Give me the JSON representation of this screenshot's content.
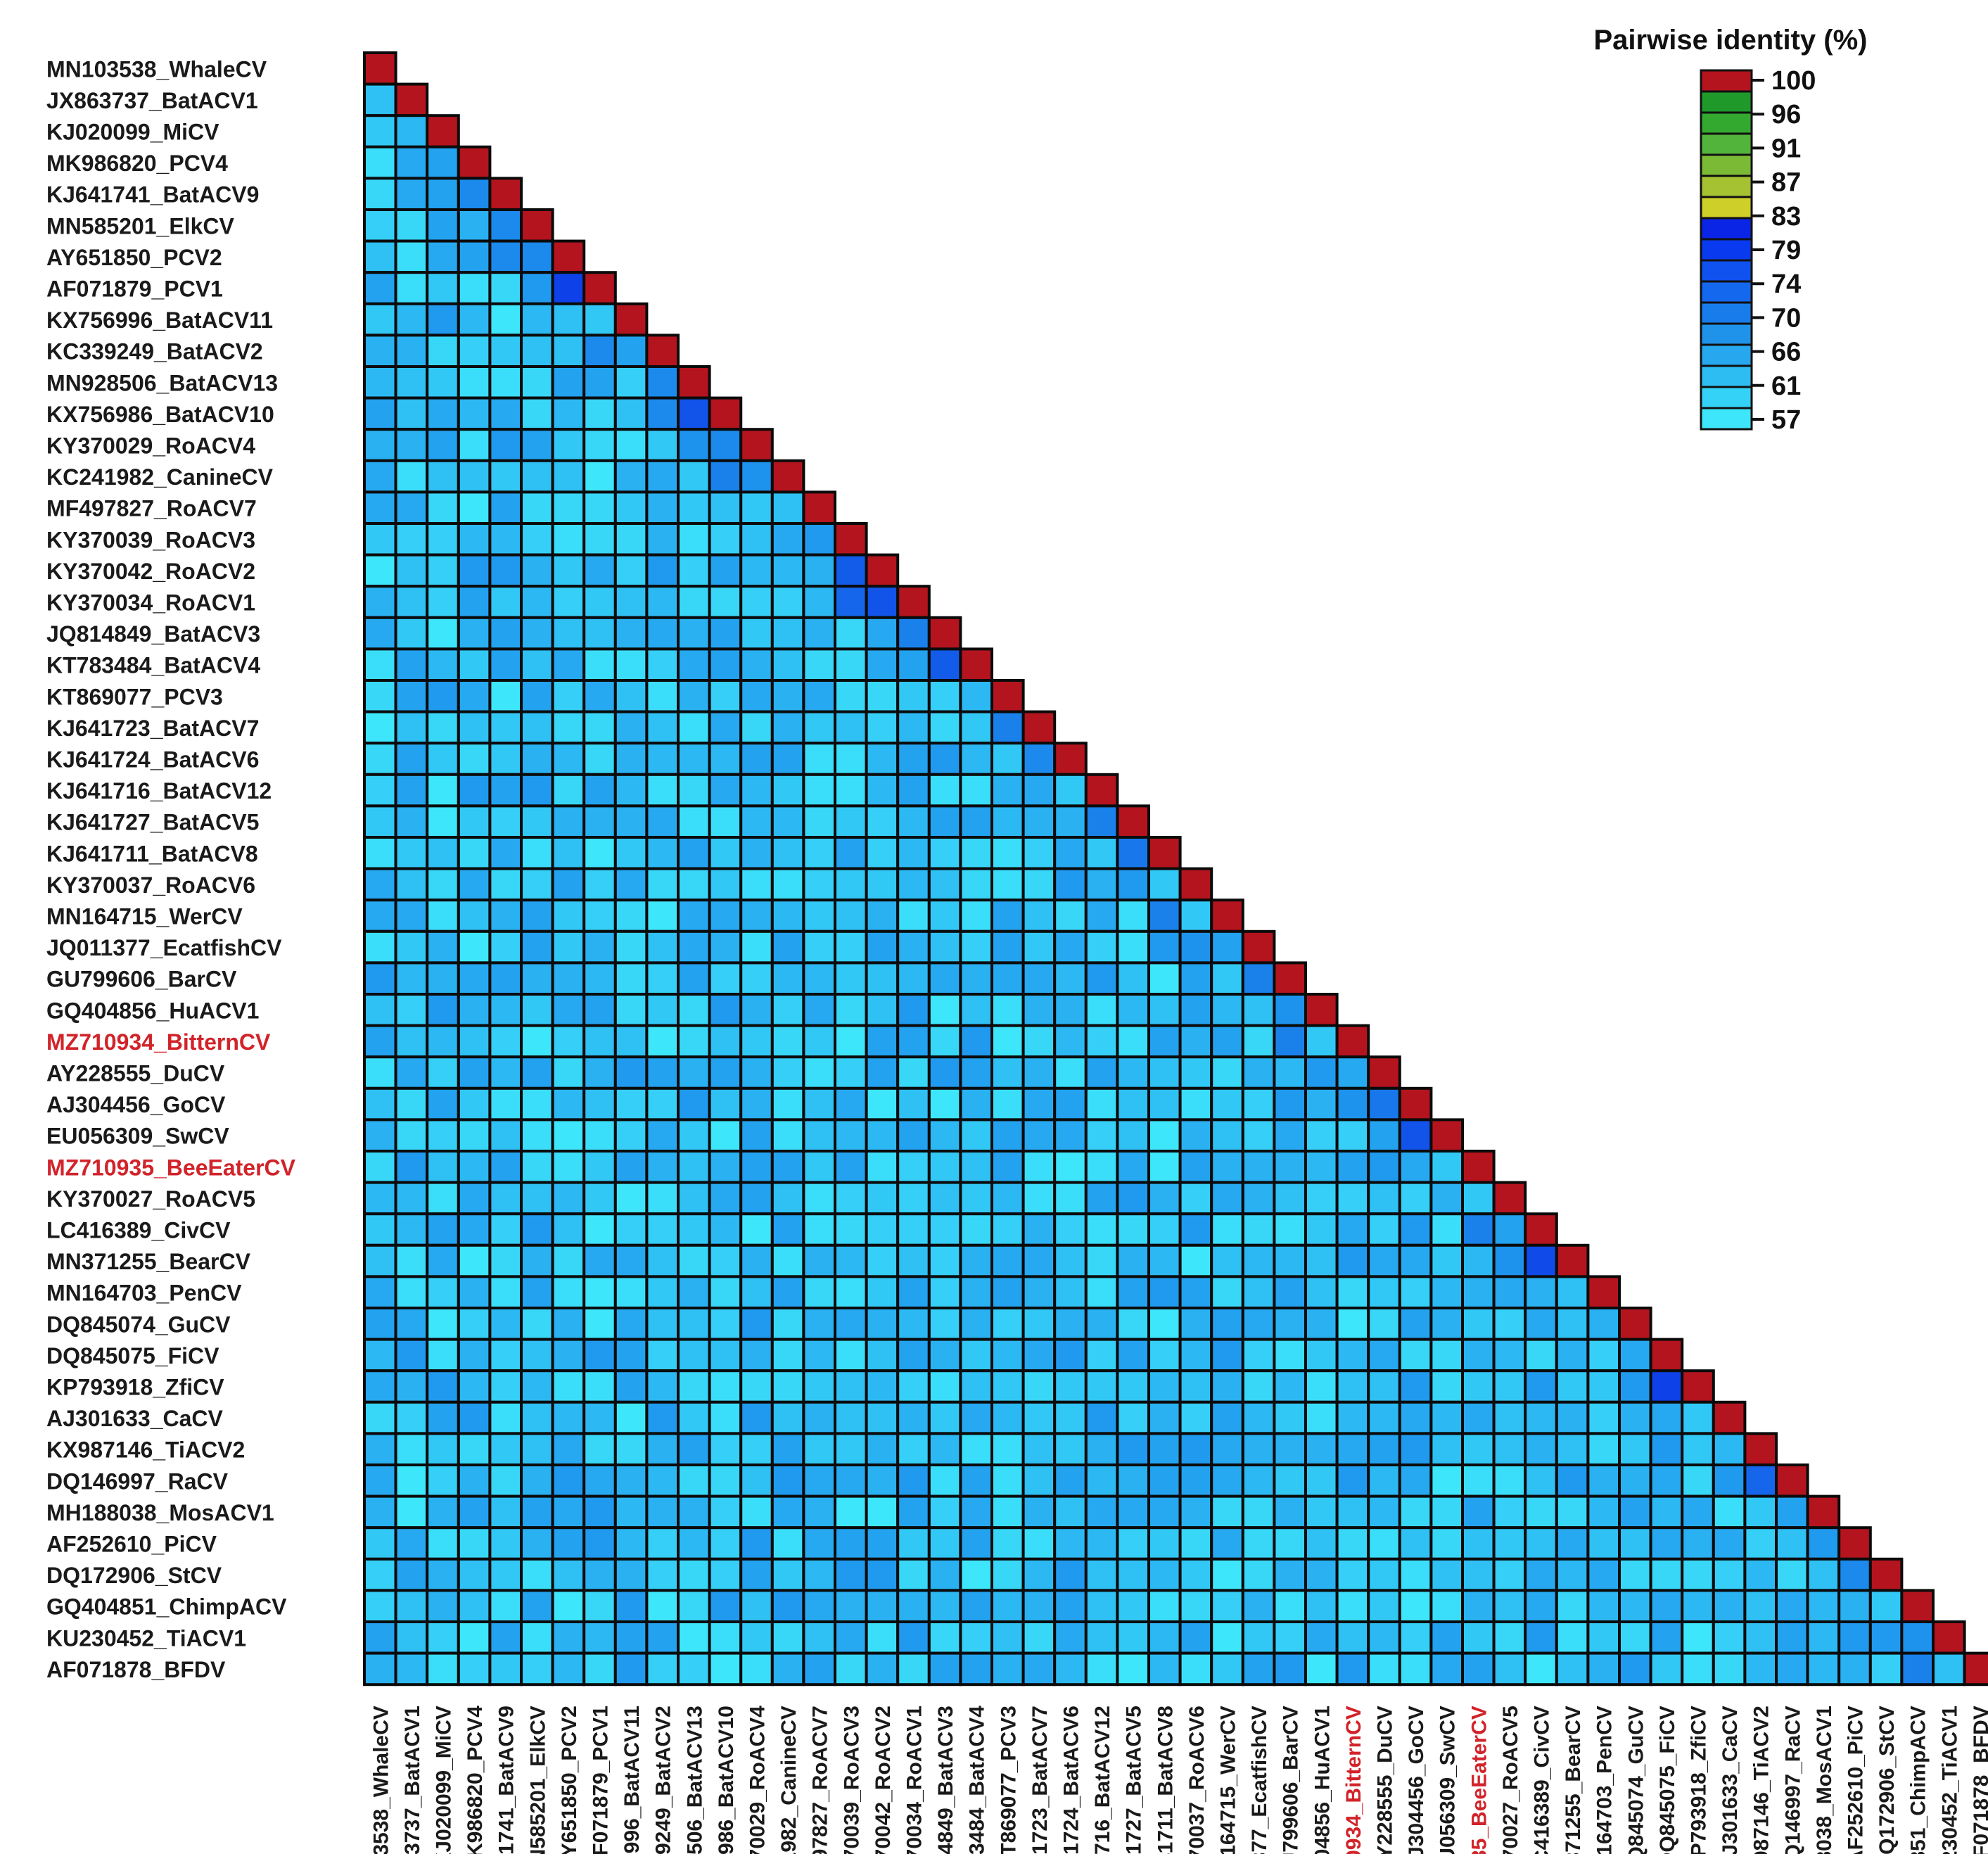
{
  "chart_data": {
    "type": "heatmap",
    "title": "",
    "legend": {
      "title": "Pairwise identity (%)",
      "placement": "top-right",
      "ticks": [
        "100",
        "96",
        "91",
        "87",
        "83",
        "79",
        "74",
        "70",
        "66",
        "61",
        "57"
      ],
      "colors": [
        "#b4141e",
        "#1f9a2a",
        "#33a92f",
        "#52b43a",
        "#7aba34",
        "#a5c232",
        "#cfcf2a",
        "#0a25e6",
        "#0a3af0",
        "#0f52f0",
        "#1468ee",
        "#187deb",
        "#1f92ea",
        "#26a7ee",
        "#2ebdf3",
        "#35d2f7",
        "#3ee6fb"
      ]
    },
    "highlight_color": "#d2232a",
    "highlighted": [
      "MZ710934_BitternCV",
      "MZ710935_BeeEaterCV"
    ],
    "sequences": [
      "MN103538_WhaleCV",
      "JX863737_BatACV1",
      "KJ020099_MiCV",
      "MK986820_PCV4",
      "KJ641741_BatACV9",
      "MN585201_ElkCV",
      "AY651850_PCV2",
      "AF071879_PCV1",
      "KX756996_BatACV11",
      "KC339249_BatACV2",
      "MN928506_BatACV13",
      "KX756986_BatACV10",
      "KY370029_RoACV4",
      "KC241982_CanineCV",
      "MF497827_RoACV7",
      "KY370039_RoACV3",
      "KY370042_RoACV2",
      "KY370034_RoACV1",
      "JQ814849_BatACV3",
      "KT783484_BatACV4",
      "KT869077_PCV3",
      "KJ641723_BatACV7",
      "KJ641724_BatACV6",
      "KJ641716_BatACV12",
      "KJ641727_BatACV5",
      "KJ641711_BatACV8",
      "KY370037_RoACV6",
      "MN164715_WerCV",
      "JQ011377_EcatfishCV",
      "GU799606_BarCV",
      "GQ404856_HuACV1",
      "MZ710934_BitternCV",
      "AY228555_DuCV",
      "AJ304456_GoCV",
      "EU056309_SwCV",
      "MZ710935_BeeEaterCV",
      "KY370027_RoACV5",
      "LC416389_CivCV",
      "MN371255_BearCV",
      "MN164703_PenCV",
      "DQ845074_GuCV",
      "DQ845075_FiCV",
      "KP793918_ZfiCV",
      "AJ301633_CaCV",
      "KX987146_TiACV2",
      "DQ146997_RaCV",
      "MH188038_MosACV1",
      "AF252610_PiCV",
      "DQ172906_StCV",
      "GQ404851_ChimpACV",
      "KU230452_TiACV1",
      "AF071878_BFDV"
    ],
    "diagonal_value": 100,
    "notable_pairs": [
      {
        "a": "AY651850_PCV2",
        "b": "AF071879_PCV1",
        "identity": 76
      },
      {
        "a": "KX756986_BatACV10",
        "b": "MN928506_BatACV13",
        "identity": 74
      },
      {
        "a": "KY370042_RoACV2",
        "b": "KY370039_RoACV3",
        "identity": 73
      },
      {
        "a": "KY370034_RoACV1",
        "b": "KY370039_RoACV3",
        "identity": 72
      },
      {
        "a": "KY370034_RoACV1",
        "b": "KY370042_RoACV2",
        "identity": 74
      },
      {
        "a": "KT783484_BatACV4",
        "b": "JQ814849_BatACV3",
        "identity": 73
      },
      {
        "a": "KJ641711_BatACV8",
        "b": "KJ641727_BatACV5",
        "identity": 70
      },
      {
        "a": "AJ304456_GoCV",
        "b": "AY228555_DuCV",
        "identity": 70
      },
      {
        "a": "EU056309_SwCV",
        "b": "AJ304456_GoCV",
        "identity": 74
      },
      {
        "a": "MN371255_BearCV",
        "b": "LC416389_CivCV",
        "identity": 75
      },
      {
        "a": "KP793918_ZfiCV",
        "b": "DQ845075_FiCV",
        "identity": 76
      },
      {
        "a": "DQ146997_RaCV",
        "b": "KX987146_TiACV2",
        "identity": 72
      }
    ],
    "baseline_identity_range": [
      56,
      66
    ]
  }
}
